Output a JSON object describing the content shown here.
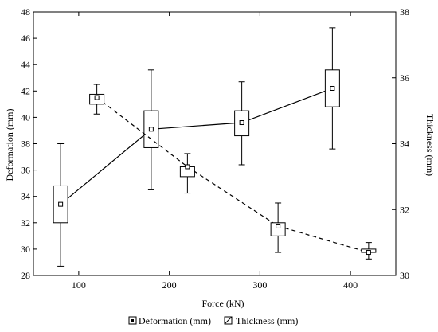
{
  "chart_data": {
    "type": "box",
    "xlabel": "Force (kN)",
    "ylabel_left": "Deformation (mm)",
    "ylabel_right": "Thickness (mm)",
    "xlim": [
      50,
      450
    ],
    "xticks": [
      100,
      200,
      300,
      400
    ],
    "ylim_left": [
      28,
      48
    ],
    "yticks_left": [
      28,
      30,
      32,
      34,
      36,
      38,
      40,
      42,
      44,
      46,
      48
    ],
    "ylim_right": [
      30,
      38
    ],
    "yticks_right": [
      30,
      32,
      34,
      36,
      38
    ],
    "legend_position": "bottom-center",
    "series": [
      {
        "name": "Deformation (mm)",
        "axis": "left",
        "line_style": "solid",
        "points": [
          {
            "x": 80,
            "mean": 33.4,
            "box_low": 32.0,
            "box_high": 34.8,
            "whisker_low": 28.7,
            "whisker_high": 38.0
          },
          {
            "x": 180,
            "mean": 39.1,
            "box_low": 37.7,
            "box_high": 40.5,
            "whisker_low": 34.5,
            "whisker_high": 43.6
          },
          {
            "x": 280,
            "mean": 39.6,
            "box_low": 38.6,
            "box_high": 40.5,
            "whisker_low": 36.4,
            "whisker_high": 42.7
          },
          {
            "x": 380,
            "mean": 42.2,
            "box_low": 40.8,
            "box_high": 43.6,
            "whisker_low": 37.6,
            "whisker_high": 46.8
          }
        ]
      },
      {
        "name": "Thickness (mm)",
        "axis": "right",
        "line_style": "dashed",
        "points": [
          {
            "x": 120,
            "mean": 35.4,
            "box_low": 35.2,
            "box_high": 35.5,
            "whisker_low": 34.9,
            "whisker_high": 35.8
          },
          {
            "x": 220,
            "mean": 33.3,
            "box_low": 33.0,
            "box_high": 33.3,
            "whisker_low": 32.5,
            "whisker_high": 33.7
          },
          {
            "x": 320,
            "mean": 31.5,
            "box_low": 31.2,
            "box_high": 31.6,
            "whisker_low": 30.7,
            "whisker_high": 32.2
          },
          {
            "x": 420,
            "mean": 30.7,
            "box_low": 30.7,
            "box_high": 30.8,
            "whisker_low": 30.5,
            "whisker_high": 31.0
          }
        ]
      }
    ]
  }
}
